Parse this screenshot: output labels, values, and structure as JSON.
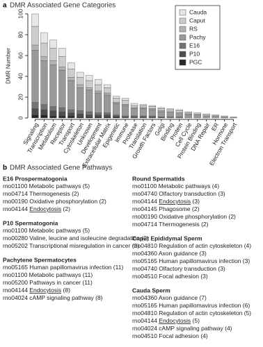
{
  "chart_data": {
    "type": "stacked_bar",
    "panel": "a",
    "title": "DMR Associated Gene Categories",
    "ylabel": "DMR Number",
    "ylim": [
      0,
      100
    ],
    "yticks": [
      0,
      20,
      40,
      60,
      80,
      100
    ],
    "legend": "top-right",
    "categories": [
      "Signaling",
      "Transcription",
      "Metabolism",
      "Receptor",
      "Transport",
      "Cytoskeleton",
      "Unknown",
      "Development",
      "Extracellular Matrix",
      "Epigenetic",
      "Immune",
      "Protease",
      "Translation",
      "Growth Factors",
      "Golgi",
      "Binding",
      "Protein",
      "Cell Cycle",
      "Protein Binding",
      "DNA Repair",
      "ER",
      "Hormone",
      "Electron Transport"
    ],
    "series": [
      {
        "name": "PGC",
        "color": "#262626",
        "values": [
          3,
          3,
          2,
          2,
          2,
          1,
          1,
          1,
          1,
          1,
          0,
          0,
          0,
          0,
          0,
          0,
          0,
          0,
          0,
          0,
          0,
          0,
          0
        ]
      },
      {
        "name": "P10",
        "color": "#4d4d4d",
        "values": [
          6,
          5,
          5,
          4,
          3,
          3,
          2,
          2,
          2,
          1,
          1,
          1,
          1,
          1,
          1,
          0,
          0,
          0,
          0,
          0,
          0,
          0,
          0
        ]
      },
      {
        "name": "E16",
        "color": "#737373",
        "values": [
          6,
          5,
          4,
          4,
          3,
          3,
          3,
          2,
          2,
          1,
          1,
          1,
          1,
          1,
          0,
          1,
          1,
          0,
          0,
          0,
          0,
          0,
          0
        ]
      },
      {
        "name": "Pachy",
        "color": "#999999",
        "values": [
          50,
          42,
          40,
          36,
          28,
          22,
          21,
          19,
          17,
          11,
          10,
          7,
          7,
          6,
          5,
          5,
          4,
          3,
          3,
          2,
          2,
          1,
          1
        ]
      },
      {
        "name": "RS",
        "color": "#b3b3b3",
        "values": [
          5,
          4,
          4,
          3,
          3,
          3,
          2,
          2,
          2,
          1,
          1,
          1,
          1,
          1,
          1,
          0,
          0,
          1,
          0,
          0,
          0,
          0,
          0
        ]
      },
      {
        "name": "Caput",
        "color": "#cccccc",
        "values": [
          18,
          13,
          12,
          10,
          8,
          7,
          7,
          6,
          5,
          4,
          4,
          2,
          2,
          2,
          2,
          2,
          2,
          1,
          1,
          1,
          1,
          1,
          0
        ]
      },
      {
        "name": "Cauda",
        "color": "#e6e6e6",
        "values": [
          12,
          10,
          8,
          8,
          6,
          5,
          5,
          5,
          3,
          2,
          2,
          2,
          1,
          1,
          1,
          1,
          1,
          1,
          1,
          1,
          0,
          0,
          0
        ]
      }
    ]
  },
  "pathways": {
    "panel": "b",
    "title": "DMR Associated Gene Pathways",
    "columns": [
      [
        {
          "title": "E16 Prospermatogonia",
          "items": [
            {
              "code": "rno01100",
              "name": "Metabolic pathways",
              "count": "(5)"
            },
            {
              "code": "rno04714",
              "name": "Thermogenesis",
              "count": "(2)"
            },
            {
              "code": "rno00190",
              "name": "Oxidative phosphorylation",
              "count": "(2)"
            },
            {
              "code": "rno04144",
              "name": "Endocytosis",
              "count": "(2)",
              "underline": true
            }
          ]
        },
        {
          "title": "P10 Spermatogonia",
          "items": [
            {
              "code": "rno01100",
              "name": "Metabolic pathways",
              "count": "(5)"
            },
            {
              "code": "rno00280",
              "name": "Valine, leucine and isoleucine degradation",
              "count": "(2)"
            },
            {
              "code": "rno05202",
              "name": "Transcriptional misregulation in cancer",
              "count": "(2)"
            }
          ]
        },
        {
          "title": "Pachytene Spermatocytes",
          "items": [
            {
              "code": "rno05165",
              "name": "Human papillomavirus infection",
              "count": "(11)"
            },
            {
              "code": "rno01100",
              "name": "Metabolic pathways",
              "count": "(11)"
            },
            {
              "code": "rno05200",
              "name": "Pathways in cancer",
              "count": "(11)"
            },
            {
              "code": "rno04144",
              "name": "Endocytosis",
              "count": "(8)",
              "underline": true
            },
            {
              "code": "rno04024",
              "name": "cAMP signaling pathway",
              "count": "(8)"
            }
          ]
        }
      ],
      [
        {
          "title": "Round Spermatids",
          "items": [
            {
              "code": "rno01100",
              "name": "Metabolic pathways",
              "count": "(4)"
            },
            {
              "code": "rno04740",
              "name": "Olfactory transduction",
              "count": "(3)"
            },
            {
              "code": "rno04144",
              "name": "Endocytosis",
              "count": "(3)",
              "underline": true
            },
            {
              "code": "rno04145",
              "name": "Phagosome",
              "count": "(2)"
            },
            {
              "code": "rno00190",
              "name": "Oxidative phosphorylation",
              "count": "(2)"
            },
            {
              "code": "rno04714",
              "name": "Thermogenesis",
              "count": "(2)"
            }
          ]
        },
        {
          "title": "Caput Epididymal Sperm",
          "items": [
            {
              "code": "rno04810",
              "name": "Regulation of actin cytoskeleton",
              "count": "(4)"
            },
            {
              "code": "rno04360",
              "name": "Axon guidance",
              "count": "(3)"
            },
            {
              "code": "rno05165",
              "name": "Human papillomavirus infection",
              "count": "(3)"
            },
            {
              "code": "rno04740",
              "name": "Olfactory transduction",
              "count": "(3)"
            },
            {
              "code": "rno04510",
              "name": "Focal adhesion",
              "count": "(3)"
            }
          ]
        },
        {
          "title": "Cauda Sperm",
          "items": [
            {
              "code": "rno04360",
              "name": "Axon guidance",
              "count": "(7)"
            },
            {
              "code": "rno05165",
              "name": "Human papillomavirus infection",
              "count": "(6)"
            },
            {
              "code": "rno04810",
              "name": "Regulation of actin cytoskeleton",
              "count": "(5)"
            },
            {
              "code": "rno04144",
              "name": "Endocytosis",
              "count": "(5)",
              "underline": true
            },
            {
              "code": "rno04024",
              "name": "cAMP signaling pathway",
              "count": "(4)"
            },
            {
              "code": "rno04510",
              "name": "Focal adhesion",
              "count": "(4)"
            }
          ]
        }
      ]
    ]
  }
}
